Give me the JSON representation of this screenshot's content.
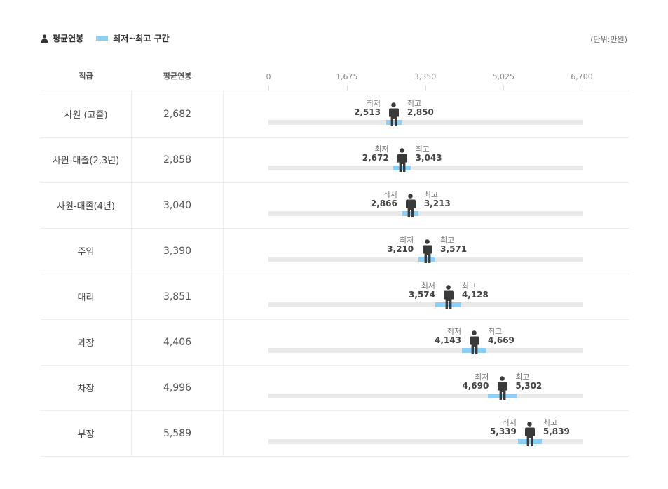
{
  "legend": {
    "avg_label": "평균연봉",
    "range_label": "최저~최고 구간",
    "avg_icon": "person-icon",
    "range_color": "#8dd0f7"
  },
  "unit_label": "(단위:만원)",
  "headers": {
    "position": "직급",
    "avg": "평균연봉"
  },
  "labels": {
    "min": "최저",
    "max": "최고"
  },
  "chart_data": {
    "type": "range",
    "x_axis": {
      "min": 0,
      "max": 6700,
      "ticks": [
        0,
        1675,
        3350,
        5025,
        6700
      ],
      "tick_labels": [
        "0",
        "1,675",
        "3,350",
        "5,025",
        "6,700"
      ]
    },
    "rows": [
      {
        "position": "사원 (고졸)",
        "avg": 2682,
        "avg_label": "2,682",
        "min": 2513,
        "min_label": "2,513",
        "max": 2850,
        "max_label": "2,850"
      },
      {
        "position": "사원-대졸(2,3년)",
        "avg": 2858,
        "avg_label": "2,858",
        "min": 2672,
        "min_label": "2,672",
        "max": 3043,
        "max_label": "3,043"
      },
      {
        "position": "사원-대졸(4년)",
        "avg": 3040,
        "avg_label": "3,040",
        "min": 2866,
        "min_label": "2,866",
        "max": 3213,
        "max_label": "3,213"
      },
      {
        "position": "주임",
        "avg": 3390,
        "avg_label": "3,390",
        "min": 3210,
        "min_label": "3,210",
        "max": 3571,
        "max_label": "3,571"
      },
      {
        "position": "대리",
        "avg": 3851,
        "avg_label": "3,851",
        "min": 3574,
        "min_label": "3,574",
        "max": 4128,
        "max_label": "4,128"
      },
      {
        "position": "과장",
        "avg": 4406,
        "avg_label": "4,406",
        "min": 4143,
        "min_label": "4,143",
        "max": 4669,
        "max_label": "4,669"
      },
      {
        "position": "차장",
        "avg": 4996,
        "avg_label": "4,996",
        "min": 4690,
        "min_label": "4,690",
        "max": 5302,
        "max_label": "5,302"
      },
      {
        "position": "부장",
        "avg": 5589,
        "avg_label": "5,589",
        "min": 5339,
        "min_label": "5,339",
        "max": 5839,
        "max_label": "5,839"
      }
    ]
  }
}
